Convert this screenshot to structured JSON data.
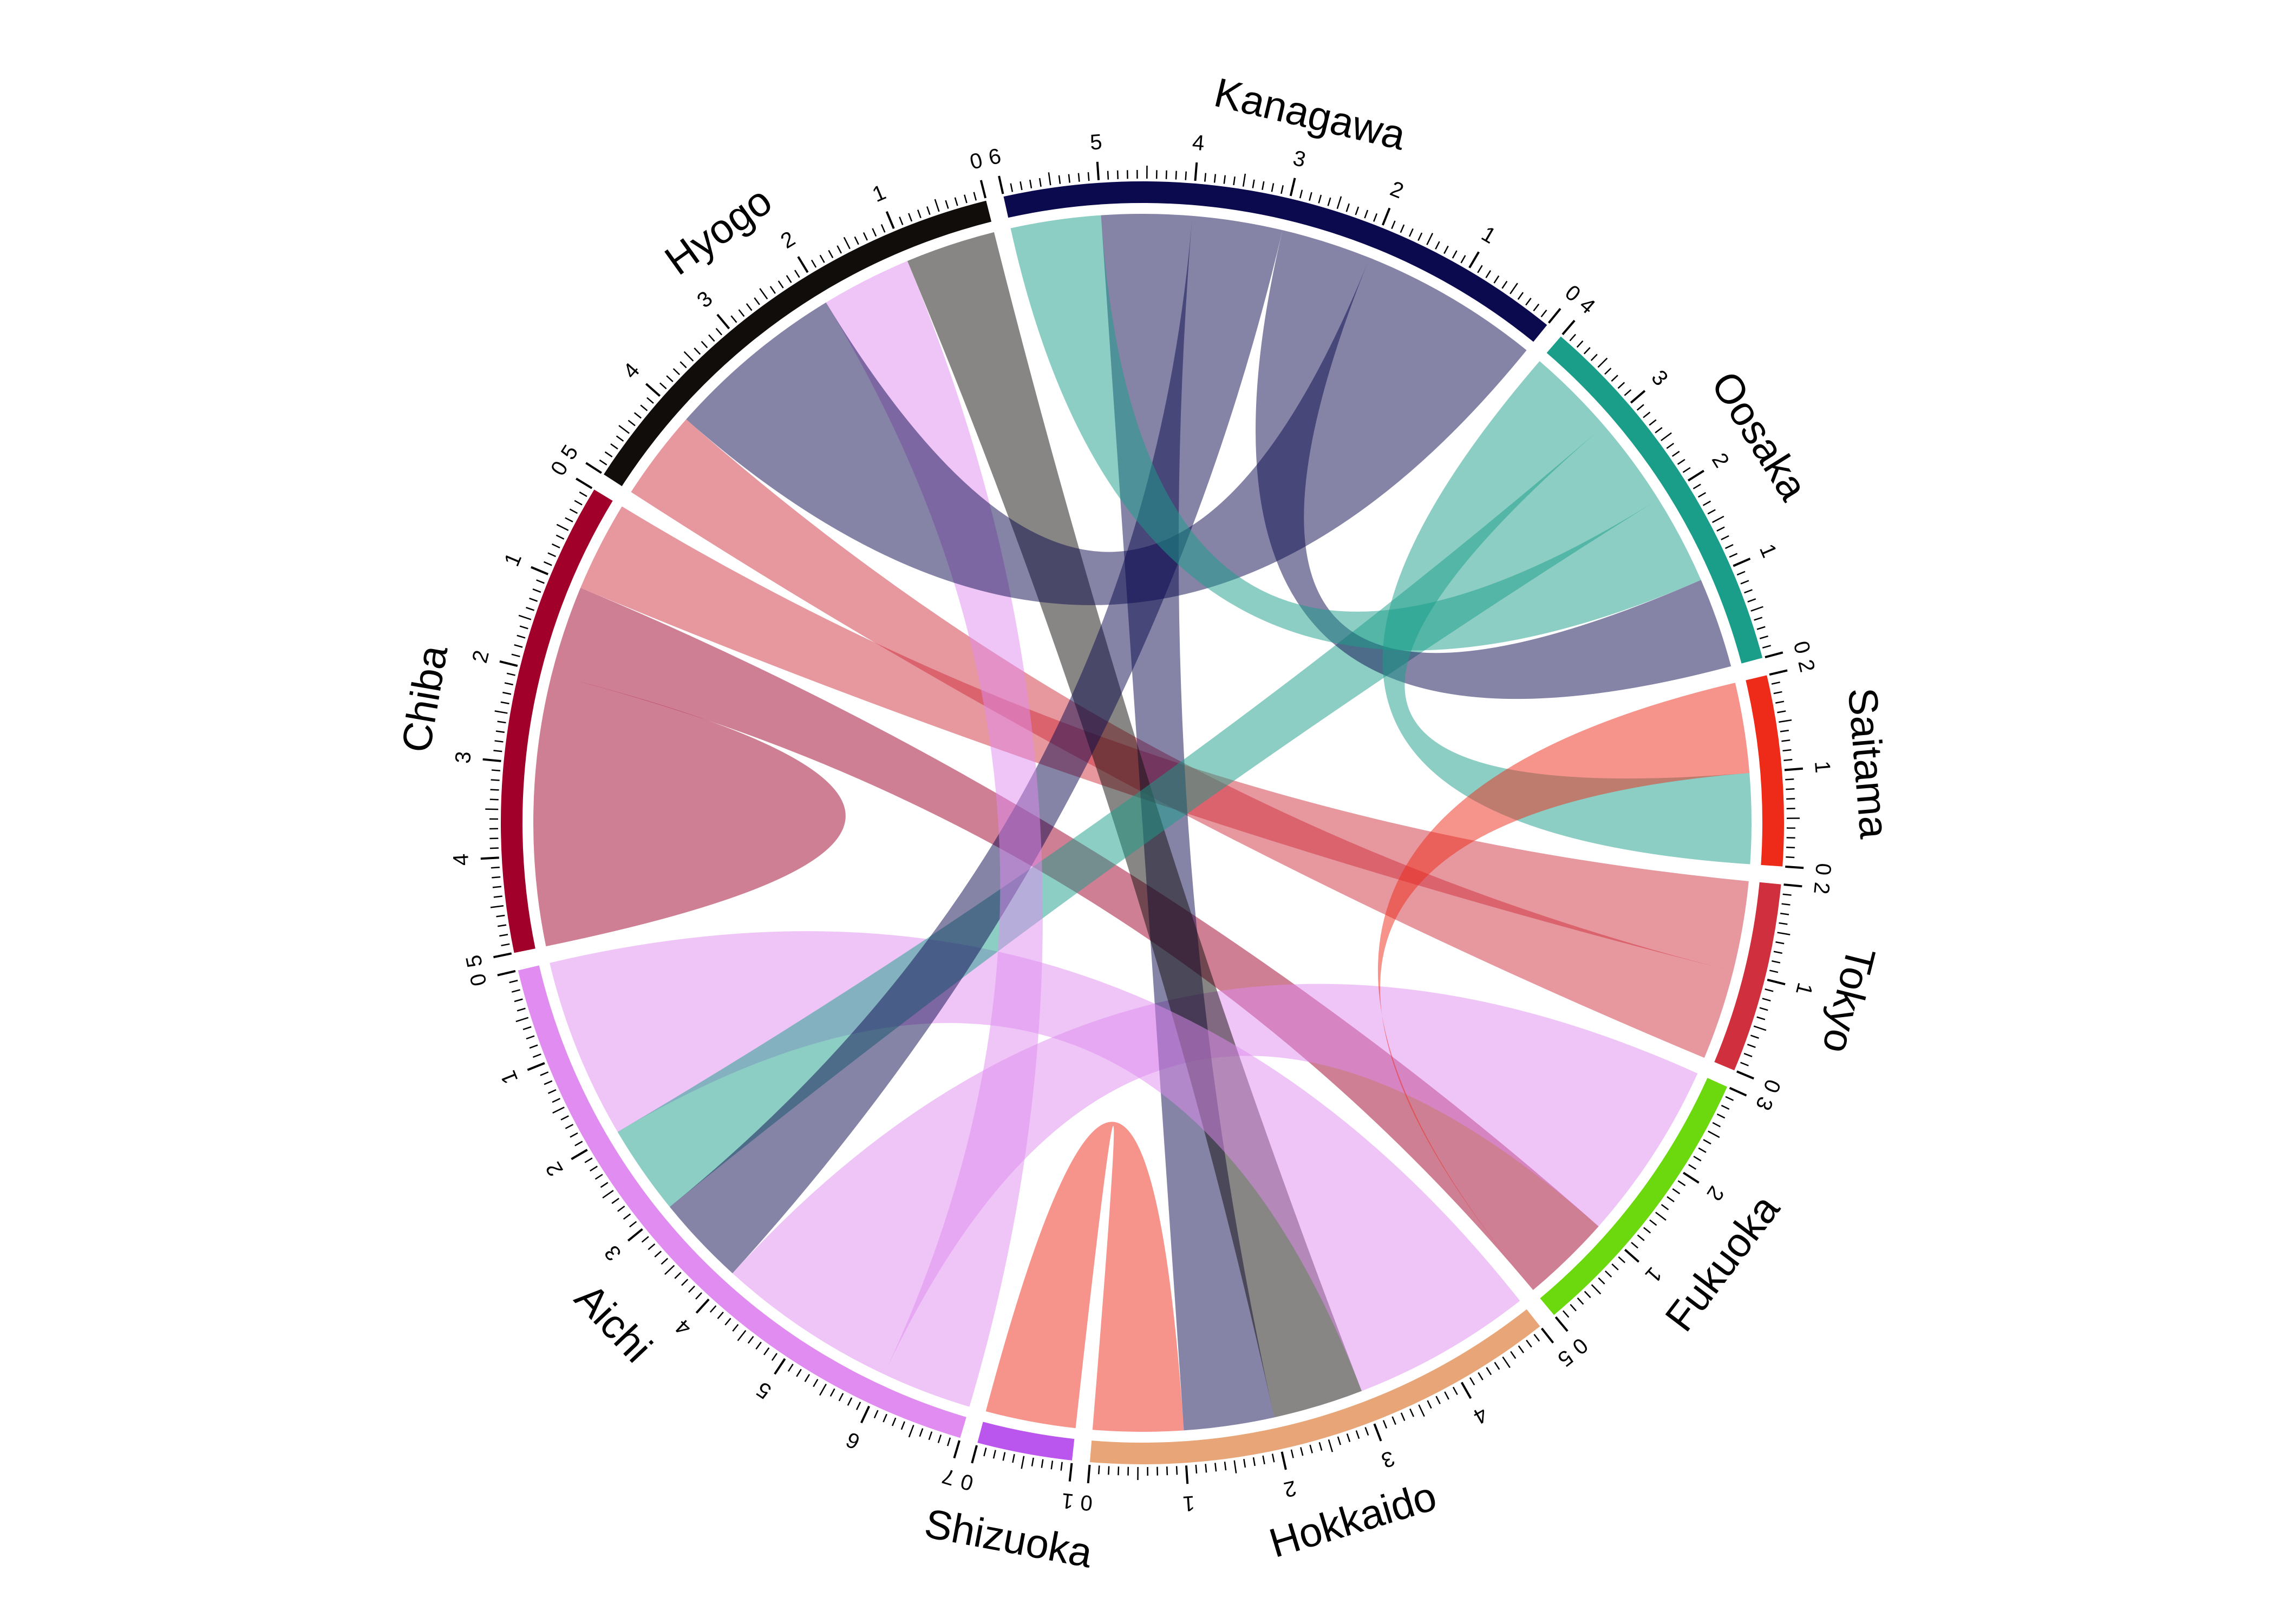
{
  "chart_data": {
    "type": "chord",
    "title": "",
    "sectors": [
      {
        "name": "Tokyo",
        "size": 2,
        "color": "#D0303E"
      },
      {
        "name": "Fukuoka",
        "size": 3,
        "color": "#6CD80E"
      },
      {
        "name": "Hokkaido",
        "size": 5,
        "color": "#E8A678"
      },
      {
        "name": "Shizuoka",
        "size": 1,
        "color": "#BA56EE"
      },
      {
        "name": "Aichi",
        "size": 7,
        "color": "#E08CF0"
      },
      {
        "name": "Chiba",
        "size": 5,
        "color": "#A0002A"
      },
      {
        "name": "Hyogo",
        "size": 5,
        "color": "#110D0B"
      },
      {
        "name": "Kanagawa",
        "size": 6,
        "color": "#0C0A4E"
      },
      {
        "name": "Oosaka",
        "size": 4,
        "color": "#1A9E8A"
      },
      {
        "name": "Saitama",
        "size": 2,
        "color": "#EE2A18"
      }
    ],
    "links": [
      {
        "from": "Tokyo",
        "from_range": [
          0,
          1
        ],
        "to": "Hyogo",
        "to_range": [
          4,
          5
        ],
        "color": "#D0303E"
      },
      {
        "from": "Tokyo",
        "from_range": [
          1,
          2
        ],
        "to": "Chiba",
        "to_range": [
          0,
          1
        ],
        "color": "#D0303E"
      },
      {
        "from": "Fukuoka",
        "from_range": [
          0,
          1
        ],
        "to": "Chiba",
        "to_range": [
          1,
          2
        ],
        "color": "#A0002A"
      },
      {
        "from": "Fukuoka",
        "from_range": [
          1,
          3
        ],
        "to": "Aichi",
        "to_range": [
          4,
          6
        ],
        "color": "#E08CF0"
      },
      {
        "from": "Hokkaido",
        "from_range": [
          0,
          1
        ],
        "to": "Shizuoka",
        "to_range": [
          0,
          1
        ],
        "color": "#EE2A18"
      },
      {
        "from": "Hokkaido",
        "from_range": [
          1,
          2
        ],
        "to": "Kanagawa",
        "to_range": [
          4,
          5
        ],
        "color": "#0C0A4E"
      },
      {
        "from": "Hokkaido",
        "from_range": [
          2,
          3
        ],
        "to": "Hyogo",
        "to_range": [
          0,
          1
        ],
        "color": "#110D0B"
      },
      {
        "from": "Hokkaido",
        "from_range": [
          3,
          5
        ],
        "to": "Aichi",
        "to_range": [
          0,
          2
        ],
        "color": "#E08CF0"
      },
      {
        "from": "Aichi",
        "from_range": [
          2,
          3
        ],
        "to": "Oosaka",
        "to_range": [
          2,
          3
        ],
        "color": "#1A9E8A"
      },
      {
        "from": "Aichi",
        "from_range": [
          3,
          4
        ],
        "to": "Kanagawa",
        "to_range": [
          3,
          4
        ],
        "color": "#0C0A4E"
      },
      {
        "from": "Aichi",
        "from_range": [
          6,
          7
        ],
        "to": "Hyogo",
        "to_range": [
          1,
          2
        ],
        "color": "#E08CF0"
      },
      {
        "from": "Chiba",
        "from_range": [
          2,
          5
        ],
        "to": "Chiba",
        "to_range": [
          2,
          5
        ],
        "color": "#A0002A"
      },
      {
        "from": "Hyogo",
        "from_range": [
          2,
          4
        ],
        "to": "Kanagawa",
        "to_range": [
          0,
          2
        ],
        "color": "#0C0A4E"
      },
      {
        "from": "Kanagawa",
        "from_range": [
          2,
          3
        ],
        "to": "Oosaka",
        "to_range": [
          0,
          1
        ],
        "color": "#0C0A4E"
      },
      {
        "from": "Kanagawa",
        "from_range": [
          5,
          6
        ],
        "to": "Oosaka",
        "to_range": [
          1,
          2
        ],
        "color": "#1A9E8A"
      },
      {
        "from": "Oosaka",
        "from_range": [
          3,
          4
        ],
        "to": "Saitama",
        "to_range": [
          0,
          1
        ],
        "color": "#1A9E8A"
      },
      {
        "from": "Saitama",
        "from_range": [
          1,
          2
        ],
        "to": "Fukuoka",
        "to_range": [
          0,
          0
        ],
        "color": "#EE2A18"
      }
    ]
  }
}
